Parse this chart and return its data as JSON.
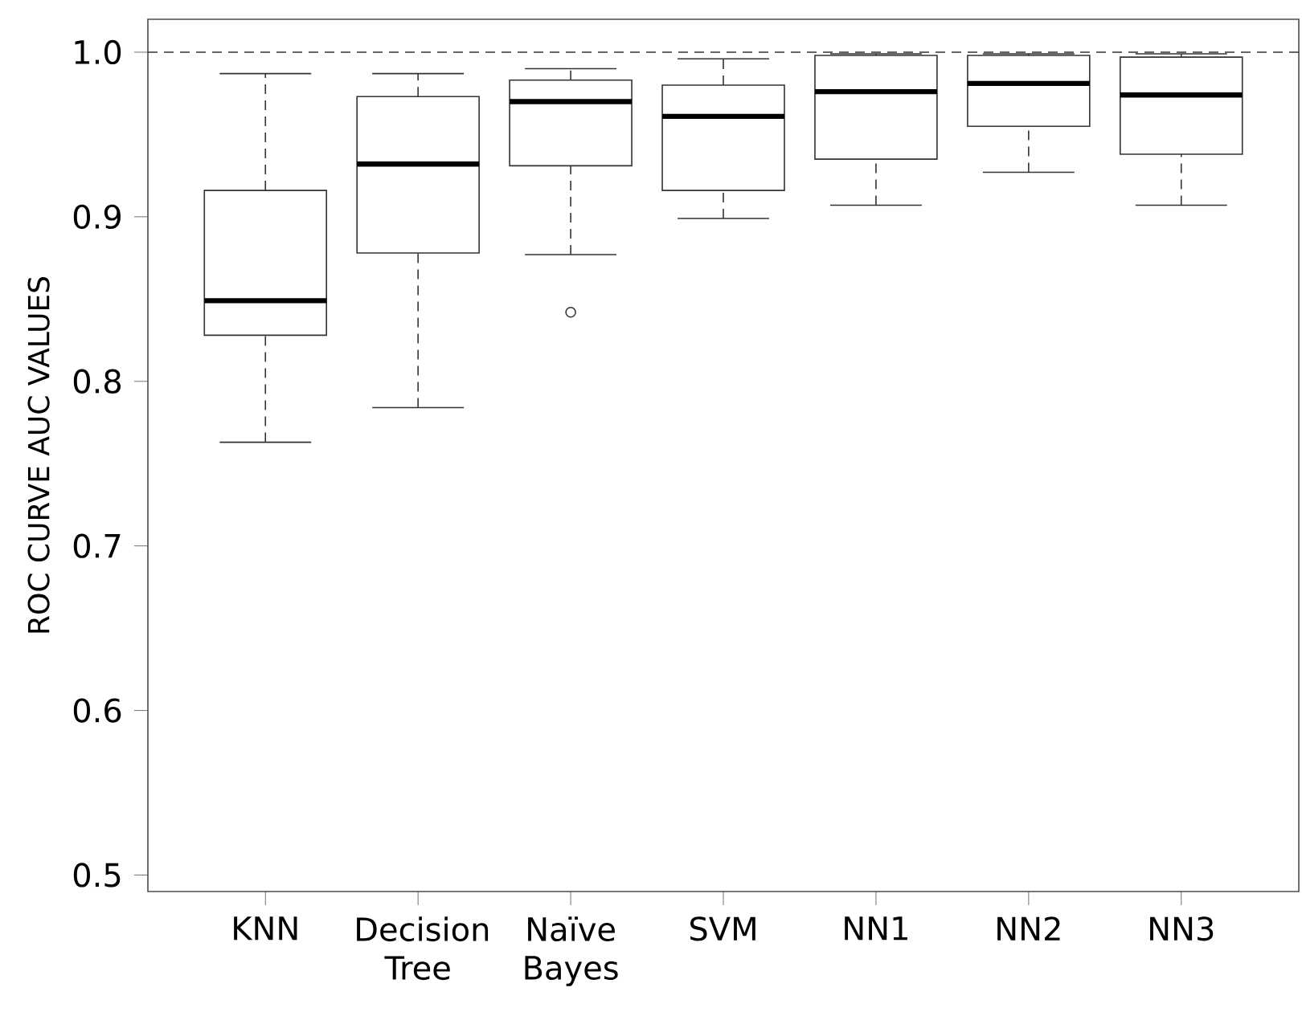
{
  "chart_data": {
    "type": "box",
    "ylabel": "ROC CURVE AUC VALUES",
    "categories": [
      "KNN",
      "Decision Tree",
      "Naïve Bayes",
      "SVM",
      "NN1",
      "NN2",
      "NN3"
    ],
    "boxes": [
      {
        "low": 0.763,
        "q1": 0.828,
        "median": 0.849,
        "q3": 0.916,
        "high": 0.987
      },
      {
        "low": 0.784,
        "q1": 0.878,
        "median": 0.932,
        "q3": 0.973,
        "high": 0.987
      },
      {
        "low": 0.877,
        "q1": 0.931,
        "median": 0.97,
        "q3": 0.983,
        "high": 0.99,
        "outliers": [
          0.842
        ]
      },
      {
        "low": 0.899,
        "q1": 0.916,
        "median": 0.961,
        "q3": 0.98,
        "high": 0.996
      },
      {
        "low": 0.907,
        "q1": 0.935,
        "median": 0.976,
        "q3": 0.998,
        "high": 0.999
      },
      {
        "low": 0.927,
        "q1": 0.955,
        "median": 0.981,
        "q3": 0.998,
        "high": 0.999
      },
      {
        "low": 0.907,
        "q1": 0.938,
        "median": 0.974,
        "q3": 0.997,
        "high": 0.999
      }
    ],
    "ylim": [
      0.49,
      1.02
    ],
    "yticks": [
      0.5,
      0.6,
      0.7,
      0.8,
      0.9,
      {
        "value": 1.0,
        "label": "1.0"
      }
    ],
    "ref_lines": [
      {
        "axis": "y",
        "value": 1.0,
        "line_style": "dashed"
      }
    ],
    "grid": false
  }
}
